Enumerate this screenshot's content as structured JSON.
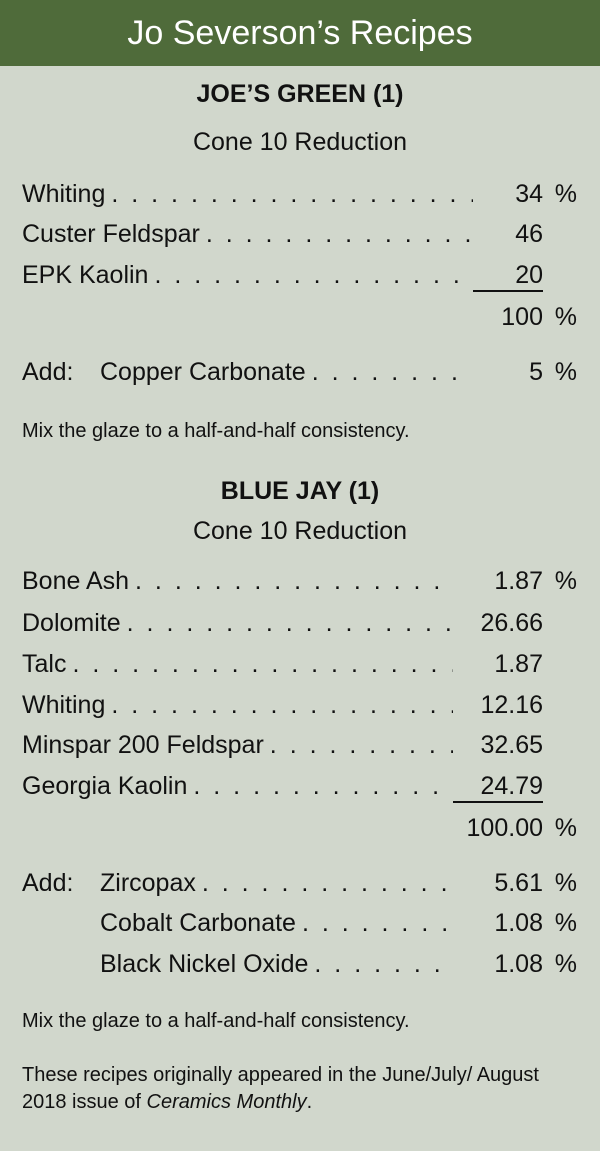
{
  "header": {
    "title": "Jo Severson’s Recipes"
  },
  "recipes": [
    {
      "name": "JOE’S GREEN (1)",
      "cone": "Cone 10 Reduction",
      "ingredients": [
        {
          "name": "Whiting",
          "value": "34",
          "unit": "%"
        },
        {
          "name": "Custer Feldspar",
          "value": "46",
          "unit": ""
        },
        {
          "name": "EPK Kaolin",
          "value": "20",
          "unit": ""
        }
      ],
      "total": {
        "value": "100",
        "unit": "%"
      },
      "add_label": "Add:",
      "additions": [
        {
          "name": "Copper Carbonate",
          "value": "5",
          "unit": "%"
        }
      ],
      "note": "Mix the glaze to a half-and-half consistency."
    },
    {
      "name": "BLUE JAY (1)",
      "cone": "Cone 10 Reduction",
      "ingredients": [
        {
          "name": "Bone Ash",
          "value": "1.87",
          "unit": "%"
        },
        {
          "name": "Dolomite",
          "value": "26.66",
          "unit": ""
        },
        {
          "name": "Talc",
          "value": "1.87",
          "unit": ""
        },
        {
          "name": "Whiting",
          "value": "12.16",
          "unit": ""
        },
        {
          "name": "Minspar 200 Feldspar",
          "value": "32.65",
          "unit": ""
        },
        {
          "name": "Georgia Kaolin",
          "value": "24.79",
          "unit": ""
        }
      ],
      "total": {
        "value": "100.00",
        "unit": "%"
      },
      "add_label": "Add:",
      "additions": [
        {
          "name": "Zircopax",
          "value": "5.61",
          "unit": "%"
        },
        {
          "name": "Cobalt Carbonate",
          "value": "1.08",
          "unit": "%"
        },
        {
          "name": "Black Nickel Oxide",
          "value": "1.08",
          "unit": "%"
        }
      ],
      "note": "Mix the glaze to a half-and-half consistency."
    }
  ],
  "footer": {
    "text": "These recipes originally appeared in the June/July/ August 2018 issue of ",
    "magazine": "Ceramics Monthly",
    "end": "."
  },
  "colors": {
    "header": "#4f6b3a",
    "background": "#d1d7cc"
  }
}
